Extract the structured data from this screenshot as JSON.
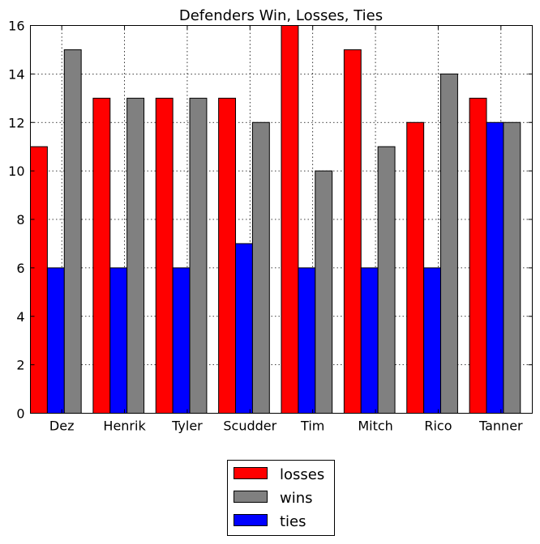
{
  "chart_data": {
    "type": "bar",
    "title": "Defenders Win, Losses, Ties",
    "xlabel": "",
    "ylabel": "",
    "categories": [
      "Dez",
      "Henrik",
      "Tyler",
      "Scudder",
      "Tim",
      "Mitch",
      "Rico",
      "Tanner"
    ],
    "series": [
      {
        "name": "losses",
        "color": "#ff0000",
        "values": [
          11,
          13,
          13,
          13,
          16,
          15,
          12,
          13
        ]
      },
      {
        "name": "ties",
        "color": "#0000ff",
        "values": [
          6,
          6,
          6,
          7,
          6,
          6,
          6,
          12
        ]
      },
      {
        "name": "wins",
        "color": "#808080",
        "values": [
          15,
          13,
          13,
          12,
          10,
          11,
          14,
          12
        ]
      }
    ],
    "ylim": [
      0,
      16
    ],
    "yticks": [
      "0",
      "2",
      "4",
      "6",
      "8",
      "10",
      "12",
      "14",
      "16"
    ],
    "grid": true,
    "legend": {
      "placement": "bottom-center",
      "entries": [
        {
          "label": "losses",
          "color": "#ff0000"
        },
        {
          "label": "wins",
          "color": "#808080"
        },
        {
          "label": "ties",
          "color": "#0000ff"
        }
      ]
    }
  }
}
